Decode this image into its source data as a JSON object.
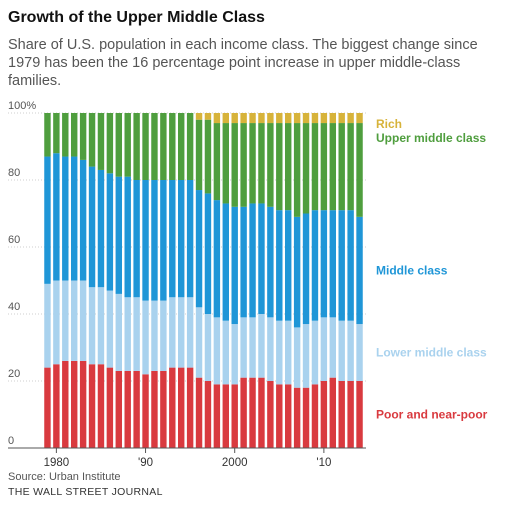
{
  "title": "Growth of the Upper Middle Class",
  "subtitle": "Share of U.S. population in each income class. The biggest change since 1979 has been the 16 percentage point increase in upper middle-class families.",
  "source": "Source: Urban Institute",
  "publisher": "THE WALL STREET JOURNAL",
  "colors": {
    "poor": "#d93a3f",
    "lower_middle": "#a9d2ee",
    "middle": "#1f96d7",
    "upper_middle": "#4f9e3e",
    "rich": "#d7b33a"
  },
  "chart_data": {
    "type": "bar",
    "stacked": true,
    "grid": true,
    "legend": "right",
    "ylim": [
      0,
      100
    ],
    "y_ticks": [
      {
        "value": 0,
        "label": "0"
      },
      {
        "value": 20,
        "label": "20"
      },
      {
        "value": 40,
        "label": "40"
      },
      {
        "value": 60,
        "label": "60"
      },
      {
        "value": 80,
        "label": "80"
      },
      {
        "value": 100,
        "label": "100%"
      }
    ],
    "x_ticks": [
      {
        "year": 1980,
        "label": "1980"
      },
      {
        "year": 1990,
        "label": "'90"
      },
      {
        "year": 2000,
        "label": "2000"
      },
      {
        "year": 2010,
        "label": "'10"
      }
    ],
    "years": [
      1979,
      1980,
      1981,
      1982,
      1983,
      1984,
      1985,
      1986,
      1987,
      1988,
      1989,
      1990,
      1991,
      1992,
      1993,
      1994,
      1995,
      1996,
      1997,
      1998,
      1999,
      2000,
      2001,
      2002,
      2003,
      2004,
      2005,
      2006,
      2007,
      2008,
      2009,
      2010,
      2011,
      2012,
      2013,
      2014
    ],
    "series": [
      {
        "key": "poor",
        "name": "Poor and near-poor",
        "values": [
          24,
          25,
          26,
          26,
          26,
          25,
          25,
          24,
          23,
          23,
          23,
          22,
          23,
          23,
          24,
          24,
          24,
          21,
          20,
          19,
          19,
          19,
          21,
          21,
          21,
          20,
          19,
          19,
          18,
          18,
          19,
          20,
          21,
          20,
          20,
          20
        ]
      },
      {
        "key": "lower_middle",
        "name": "Lower middle class",
        "values": [
          25,
          25,
          24,
          24,
          24,
          23,
          23,
          23,
          23,
          22,
          22,
          22,
          21,
          21,
          21,
          21,
          21,
          21,
          20,
          20,
          19,
          18,
          18,
          18,
          19,
          19,
          19,
          19,
          18,
          19,
          19,
          19,
          18,
          18,
          18,
          17
        ]
      },
      {
        "key": "middle",
        "name": "Middle class",
        "values": [
          38,
          38,
          37,
          37,
          36,
          36,
          35,
          35,
          35,
          36,
          35,
          36,
          36,
          36,
          35,
          35,
          35,
          35,
          36,
          35,
          35,
          35,
          33,
          34,
          33,
          33,
          33,
          33,
          33,
          33,
          33,
          32,
          32,
          33,
          33,
          32
        ]
      },
      {
        "key": "upper_middle",
        "name": "Upper middle class",
        "values": [
          13,
          12,
          13,
          13,
          14,
          16,
          17,
          18,
          19,
          19,
          20,
          20,
          20,
          20,
          20,
          20,
          20,
          21,
          22,
          23,
          24,
          25,
          25,
          24,
          24,
          25,
          26,
          26,
          28,
          27,
          26,
          26,
          26,
          26,
          26,
          28
        ]
      },
      {
        "key": "rich",
        "name": "Rich",
        "values": [
          0,
          0,
          0,
          0,
          0,
          0,
          0,
          0,
          0,
          0,
          0,
          0,
          0,
          0,
          0,
          0,
          0,
          2,
          2,
          3,
          3,
          3,
          3,
          3,
          3,
          3,
          3,
          3,
          3,
          3,
          3,
          3,
          3,
          3,
          3,
          3
        ]
      }
    ]
  }
}
